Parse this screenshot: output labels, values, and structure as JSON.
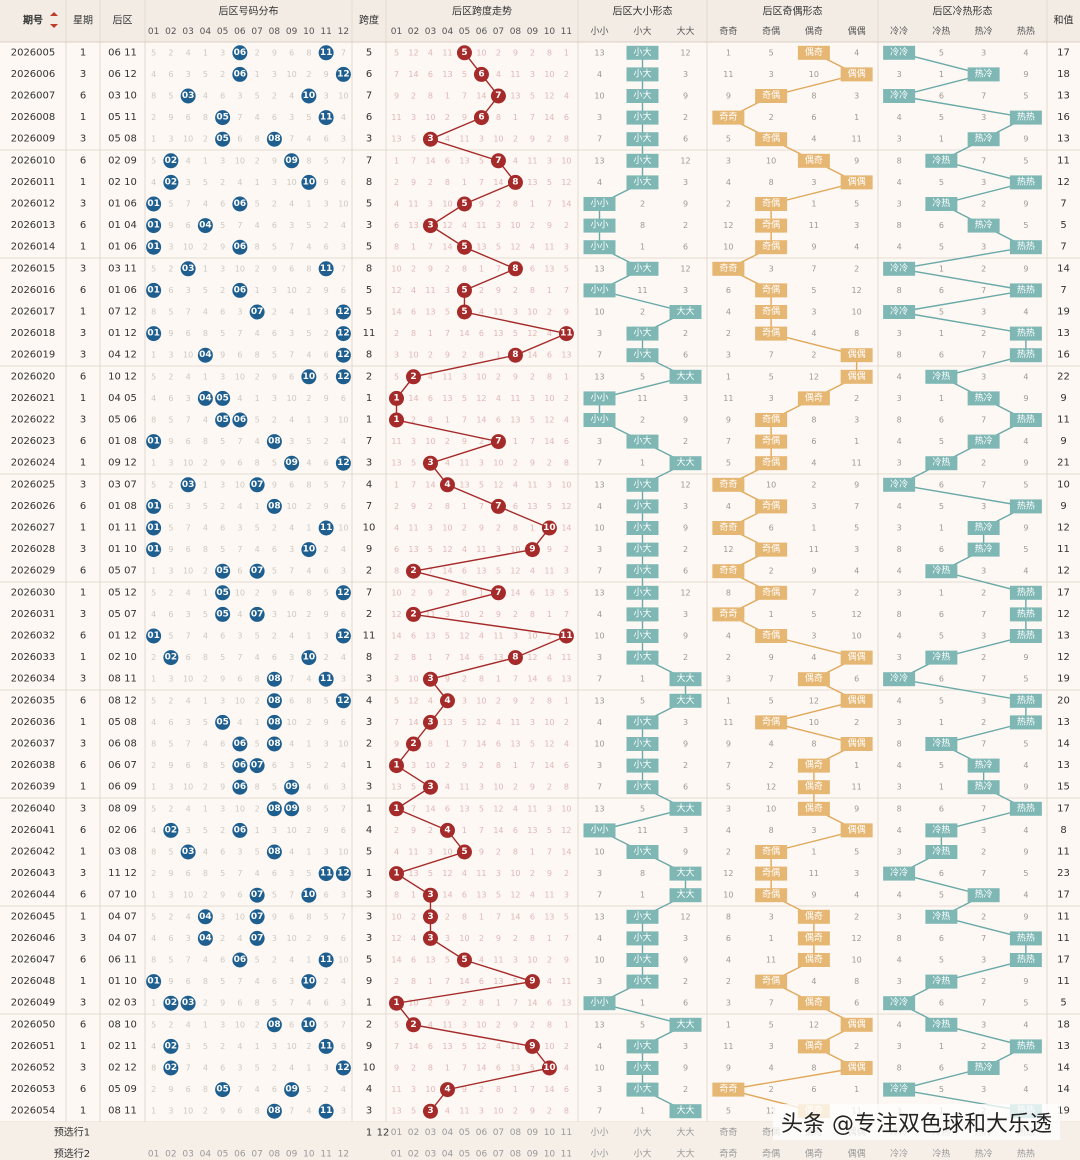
{
  "headers": {
    "period": "期号",
    "weekday": "星期",
    "back": "后区",
    "dist": "后区号码分布",
    "span": "跨度",
    "span_trend": "后区跨度走势",
    "size": "后区大小形态",
    "parity": "后区奇偶形态",
    "hotcold": "后区冷热形态",
    "sum": "和值",
    "sort_icon": "sort-arrows-icon"
  },
  "dist_cols": [
    "01",
    "02",
    "03",
    "04",
    "05",
    "06",
    "07",
    "08",
    "09",
    "10",
    "11",
    "12"
  ],
  "span_cols": [
    "0",
    "1",
    "2",
    "3",
    "4",
    "5",
    "6",
    "7",
    "8",
    "9",
    "10",
    "11"
  ],
  "span_col_labels": [
    "01",
    "02",
    "03",
    "04",
    "05",
    "06",
    "07",
    "08",
    "09",
    "10",
    "11"
  ],
  "size_cols": [
    "小小",
    "小大",
    "大大"
  ],
  "parity_cols": [
    "奇奇",
    "奇偶",
    "偶奇",
    "偶偶"
  ],
  "hotcold_cols": [
    "冷冷",
    "冷热",
    "热冷",
    "热热"
  ],
  "colors": {
    "ball_blue": "#1f5f8f",
    "ball_red": "#a52a2a",
    "size_teal": "#7fb7b5",
    "parity_gold": "#e6b673",
    "hotcold_teal": "#7fb7b5",
    "background": "#fdf8f4"
  },
  "chart_data": {
    "type": "table",
    "rows": [
      {
        "id": "2026005",
        "wd": "1",
        "back": "06 11",
        "span": 5,
        "size": "小大",
        "parity": "偶奇",
        "hc": "冷冷",
        "sum": 17
      },
      {
        "id": "2026006",
        "wd": "3",
        "back": "06 12",
        "span": 6,
        "size": "小大",
        "parity": "偶偶",
        "hc": "热冷",
        "sum": 18
      },
      {
        "id": "2026007",
        "wd": "6",
        "back": "03 10",
        "span": 7,
        "size": "小大",
        "parity": "奇偶",
        "hc": "冷冷",
        "sum": 13
      },
      {
        "id": "2026008",
        "wd": "1",
        "back": "05 11",
        "span": 6,
        "size": "小大",
        "parity": "奇奇",
        "hc": "热热",
        "sum": 16
      },
      {
        "id": "2026009",
        "wd": "3",
        "back": "05 08",
        "span": 3,
        "size": "小大",
        "parity": "奇偶",
        "hc": "热冷",
        "sum": 13
      },
      {
        "id": "2026010",
        "wd": "6",
        "back": "02 09",
        "span": 7,
        "size": "小大",
        "parity": "偶奇",
        "hc": "冷热",
        "sum": 11
      },
      {
        "id": "2026011",
        "wd": "1",
        "back": "02 10",
        "span": 8,
        "size": "小大",
        "parity": "偶偶",
        "hc": "热热",
        "sum": 12
      },
      {
        "id": "2026012",
        "wd": "3",
        "back": "01 06",
        "span": 5,
        "size": "小小",
        "parity": "奇偶",
        "hc": "冷热",
        "sum": 7
      },
      {
        "id": "2026013",
        "wd": "6",
        "back": "01 04",
        "span": 3,
        "size": "小小",
        "parity": "奇偶",
        "hc": "热冷",
        "sum": 5
      },
      {
        "id": "2026014",
        "wd": "1",
        "back": "01 06",
        "span": 5,
        "size": "小小",
        "parity": "奇偶",
        "hc": "热热",
        "sum": 7
      },
      {
        "id": "2026015",
        "wd": "3",
        "back": "03 11",
        "span": 8,
        "size": "小大",
        "parity": "奇奇",
        "hc": "冷冷",
        "sum": 14
      },
      {
        "id": "2026016",
        "wd": "6",
        "back": "01 06",
        "span": 5,
        "size": "小小",
        "parity": "奇偶",
        "hc": "热热",
        "sum": 7
      },
      {
        "id": "2026017",
        "wd": "1",
        "back": "07 12",
        "span": 5,
        "size": "大大",
        "parity": "奇偶",
        "hc": "冷冷",
        "sum": 19
      },
      {
        "id": "2026018",
        "wd": "3",
        "back": "01 12",
        "span": 11,
        "size": "小大",
        "parity": "奇偶",
        "hc": "热热",
        "sum": 13
      },
      {
        "id": "2026019",
        "wd": "3",
        "back": "04 12",
        "span": 8,
        "size": "小大",
        "parity": "偶偶",
        "hc": "热热",
        "sum": 16
      },
      {
        "id": "2026020",
        "wd": "6",
        "back": "10 12",
        "span": 2,
        "size": "大大",
        "parity": "偶偶",
        "hc": "冷热",
        "sum": 22
      },
      {
        "id": "2026021",
        "wd": "1",
        "back": "04 05",
        "span": 1,
        "size": "小小",
        "parity": "偶奇",
        "hc": "热冷",
        "sum": 9
      },
      {
        "id": "2026022",
        "wd": "3",
        "back": "05 06",
        "span": 1,
        "size": "小小",
        "parity": "奇偶",
        "hc": "热热",
        "sum": 11
      },
      {
        "id": "2026023",
        "wd": "6",
        "back": "01 08",
        "span": 7,
        "size": "小大",
        "parity": "奇偶",
        "hc": "热冷",
        "sum": 9
      },
      {
        "id": "2026024",
        "wd": "1",
        "back": "09 12",
        "span": 3,
        "size": "大大",
        "parity": "奇偶",
        "hc": "冷热",
        "sum": 21
      },
      {
        "id": "2026025",
        "wd": "3",
        "back": "03 07",
        "span": 4,
        "size": "小大",
        "parity": "奇奇",
        "hc": "冷冷",
        "sum": 10
      },
      {
        "id": "2026026",
        "wd": "6",
        "back": "01 08",
        "span": 7,
        "size": "小大",
        "parity": "奇偶",
        "hc": "热热",
        "sum": 9
      },
      {
        "id": "2026027",
        "wd": "1",
        "back": "01 11",
        "span": 10,
        "size": "小大",
        "parity": "奇奇",
        "hc": "热冷",
        "sum": 12
      },
      {
        "id": "2026028",
        "wd": "3",
        "back": "01 10",
        "span": 9,
        "size": "小大",
        "parity": "奇偶",
        "hc": "热冷",
        "sum": 11
      },
      {
        "id": "2026029",
        "wd": "6",
        "back": "05 07",
        "span": 2,
        "size": "小大",
        "parity": "奇奇",
        "hc": "冷热",
        "sum": 12
      },
      {
        "id": "2026030",
        "wd": "1",
        "back": "05 12",
        "span": 7,
        "size": "小大",
        "parity": "奇偶",
        "hc": "热热",
        "sum": 17
      },
      {
        "id": "2026031",
        "wd": "3",
        "back": "05 07",
        "span": 2,
        "size": "小大",
        "parity": "奇奇",
        "hc": "热热",
        "sum": 12
      },
      {
        "id": "2026032",
        "wd": "6",
        "back": "01 12",
        "span": 11,
        "size": "小大",
        "parity": "奇偶",
        "hc": "热热",
        "sum": 13
      },
      {
        "id": "2026033",
        "wd": "1",
        "back": "02 10",
        "span": 8,
        "size": "小大",
        "parity": "偶偶",
        "hc": "冷热",
        "sum": 12
      },
      {
        "id": "2026034",
        "wd": "3",
        "back": "08 11",
        "span": 3,
        "size": "大大",
        "parity": "偶奇",
        "hc": "冷冷",
        "sum": 19
      },
      {
        "id": "2026035",
        "wd": "6",
        "back": "08 12",
        "span": 4,
        "size": "大大",
        "parity": "偶偶",
        "hc": "热热",
        "sum": 20
      },
      {
        "id": "2026036",
        "wd": "1",
        "back": "05 08",
        "span": 3,
        "size": "小大",
        "parity": "奇偶",
        "hc": "热热",
        "sum": 13
      },
      {
        "id": "2026037",
        "wd": "3",
        "back": "06 08",
        "span": 2,
        "size": "小大",
        "parity": "偶偶",
        "hc": "冷热",
        "sum": 14
      },
      {
        "id": "2026038",
        "wd": "6",
        "back": "06 07",
        "span": 1,
        "size": "小大",
        "parity": "偶奇",
        "hc": "热冷",
        "sum": 13
      },
      {
        "id": "2026039",
        "wd": "1",
        "back": "06 09",
        "span": 3,
        "size": "小大",
        "parity": "偶奇",
        "hc": "热冷",
        "sum": 15
      },
      {
        "id": "2026040",
        "wd": "3",
        "back": "08 09",
        "span": 1,
        "size": "大大",
        "parity": "偶奇",
        "hc": "热热",
        "sum": 17
      },
      {
        "id": "2026041",
        "wd": "6",
        "back": "02 06",
        "span": 4,
        "size": "小小",
        "parity": "偶偶",
        "hc": "冷热",
        "sum": 8
      },
      {
        "id": "2026042",
        "wd": "1",
        "back": "03 08",
        "span": 5,
        "size": "小大",
        "parity": "奇偶",
        "hc": "冷热",
        "sum": 11
      },
      {
        "id": "2026043",
        "wd": "3",
        "back": "11 12",
        "span": 1,
        "size": "大大",
        "parity": "奇偶",
        "hc": "冷冷",
        "sum": 23
      },
      {
        "id": "2026044",
        "wd": "6",
        "back": "07 10",
        "span": 3,
        "size": "大大",
        "parity": "奇偶",
        "hc": "热冷",
        "sum": 17
      },
      {
        "id": "2026045",
        "wd": "1",
        "back": "04 07",
        "span": 3,
        "size": "小大",
        "parity": "偶奇",
        "hc": "冷热",
        "sum": 11
      },
      {
        "id": "2026046",
        "wd": "3",
        "back": "04 07",
        "span": 3,
        "size": "小大",
        "parity": "偶奇",
        "hc": "热热",
        "sum": 11
      },
      {
        "id": "2026047",
        "wd": "6",
        "back": "06 11",
        "span": 5,
        "size": "小大",
        "parity": "偶奇",
        "hc": "热热",
        "sum": 17
      },
      {
        "id": "2026048",
        "wd": "1",
        "back": "01 10",
        "span": 9,
        "size": "小大",
        "parity": "奇偶",
        "hc": "冷热",
        "sum": 11
      },
      {
        "id": "2026049",
        "wd": "3",
        "back": "02 03",
        "span": 1,
        "size": "小小",
        "parity": "偶奇",
        "hc": "冷冷",
        "sum": 5
      },
      {
        "id": "2026050",
        "wd": "6",
        "back": "08 10",
        "span": 2,
        "size": "大大",
        "parity": "偶偶",
        "hc": "冷热",
        "sum": 18
      },
      {
        "id": "2026051",
        "wd": "1",
        "back": "02 11",
        "span": 9,
        "size": "小大",
        "parity": "偶奇",
        "hc": "热热",
        "sum": 13
      },
      {
        "id": "2026052",
        "wd": "3",
        "back": "02 12",
        "span": 10,
        "size": "小大",
        "parity": "偶偶",
        "hc": "热冷",
        "sum": 14
      },
      {
        "id": "2026053",
        "wd": "6",
        "back": "05 09",
        "span": 4,
        "size": "小大",
        "parity": "奇奇",
        "hc": "冷冷",
        "sum": 14
      },
      {
        "id": "2026054",
        "wd": "1",
        "back": "08 11",
        "span": 3,
        "size": "大大",
        "parity": "偶奇",
        "hc": "热热",
        "sum": 19
      }
    ]
  },
  "footer": {
    "row1_label": "预选行1",
    "row2_label": "预选行2",
    "row1_span": "1",
    "row1_back": "12"
  },
  "watermark": "头条 @专注双色球和大乐透"
}
